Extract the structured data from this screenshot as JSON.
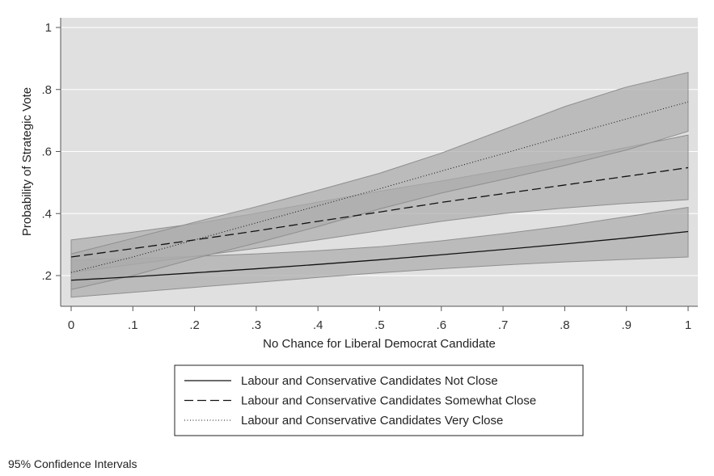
{
  "chart_data": {
    "type": "line",
    "xlabel": "No Chance for Liberal Democrat Candidate",
    "ylabel": "Probability of Strategic Vote",
    "xlim": [
      0,
      1
    ],
    "ylim": [
      0.12,
      1
    ],
    "x_ticks": [
      {
        "value": 0,
        "label": "0"
      },
      {
        "value": 0.1,
        "label": ".1"
      },
      {
        "value": 0.2,
        "label": ".2"
      },
      {
        "value": 0.3,
        "label": ".3"
      },
      {
        "value": 0.4,
        "label": ".4"
      },
      {
        "value": 0.5,
        "label": ".5"
      },
      {
        "value": 0.6,
        "label": ".6"
      },
      {
        "value": 0.7,
        "label": ".7"
      },
      {
        "value": 0.8,
        "label": ".8"
      },
      {
        "value": 0.9,
        "label": ".9"
      },
      {
        "value": 1,
        "label": "1"
      }
    ],
    "y_ticks": [
      {
        "value": 0.2,
        "label": ".2"
      },
      {
        "value": 0.4,
        "label": ".4"
      },
      {
        "value": 0.6,
        "label": ".6"
      },
      {
        "value": 0.8,
        "label": ".8"
      },
      {
        "value": 1,
        "label": "1"
      }
    ],
    "grid": true,
    "legend_position": "bottom-center",
    "colors": {
      "plot_bg": "#e0e0e0",
      "band": "#acacac",
      "band_edge": "#8e8e8e",
      "line": "#111111",
      "grid": "#ffffff"
    },
    "x": [
      0,
      0.1,
      0.2,
      0.3,
      0.4,
      0.5,
      0.6,
      0.7,
      0.8,
      0.9,
      1.0
    ],
    "series": [
      {
        "name": "Labour and Conservative Candidates Not Close",
        "style": "solid",
        "values": [
          0.185,
          0.196,
          0.209,
          0.222,
          0.236,
          0.251,
          0.267,
          0.284,
          0.302,
          0.321,
          0.342
        ],
        "lower": [
          0.13,
          0.146,
          0.162,
          0.178,
          0.194,
          0.209,
          0.222,
          0.234,
          0.244,
          0.252,
          0.26
        ],
        "upper": [
          0.25,
          0.255,
          0.262,
          0.27,
          0.28,
          0.293,
          0.312,
          0.335,
          0.36,
          0.39,
          0.42
        ]
      },
      {
        "name": "Labour and Conservative Candidates Somewhat Close",
        "style": "dashed",
        "values": [
          0.26,
          0.287,
          0.315,
          0.344,
          0.375,
          0.405,
          0.436,
          0.464,
          0.492,
          0.52,
          0.548
        ],
        "lower": [
          0.21,
          0.236,
          0.262,
          0.288,
          0.315,
          0.345,
          0.375,
          0.4,
          0.418,
          0.433,
          0.445
        ],
        "upper": [
          0.315,
          0.34,
          0.367,
          0.401,
          0.437,
          0.472,
          0.505,
          0.54,
          0.575,
          0.613,
          0.653
        ]
      },
      {
        "name": "Labour and Conservative Candidates Very Close",
        "style": "dotted",
        "values": [
          0.21,
          0.26,
          0.315,
          0.37,
          0.425,
          0.48,
          0.537,
          0.593,
          0.65,
          0.705,
          0.76
        ],
        "lower": [
          0.155,
          0.2,
          0.255,
          0.305,
          0.358,
          0.415,
          0.466,
          0.51,
          0.555,
          0.605,
          0.665
        ],
        "upper": [
          0.27,
          0.32,
          0.372,
          0.422,
          0.475,
          0.53,
          0.595,
          0.67,
          0.745,
          0.808,
          0.855
        ]
      }
    ]
  },
  "note": "95% Confidence Intervals"
}
